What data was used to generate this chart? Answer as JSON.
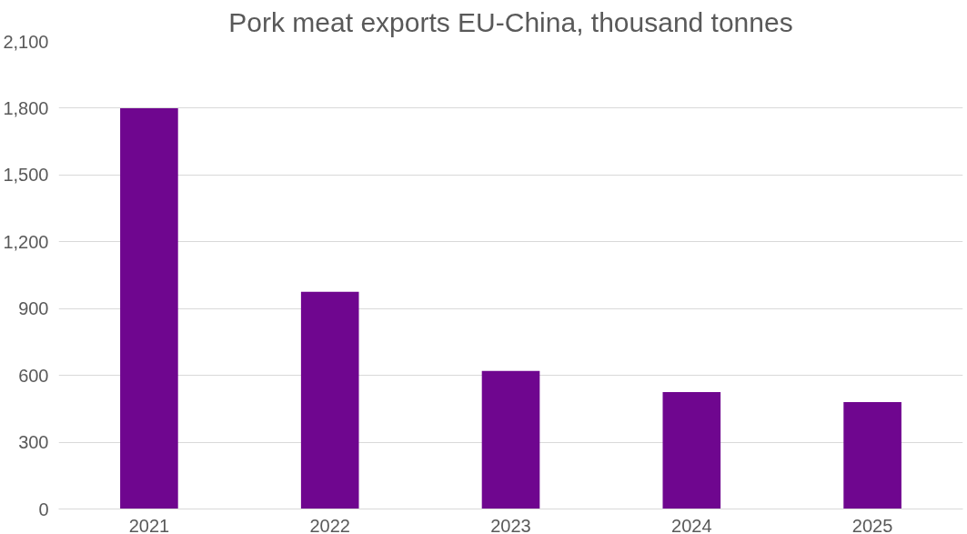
{
  "chart_data": {
    "type": "bar",
    "title": "Pork meat exports EU-China, thousand tonnes",
    "categories": [
      "2021",
      "2022",
      "2023",
      "2024",
      "2025"
    ],
    "values": [
      1800,
      975,
      620,
      525,
      480
    ],
    "color": "#6f068f",
    "ylim": [
      0,
      2100
    ],
    "yticks": [
      0,
      300,
      600,
      900,
      {
        "value": 1200,
        "label": "1,200"
      },
      {
        "value": 1500,
        "label": "1,500"
      },
      {
        "value": 1800,
        "label": "1,800"
      },
      {
        "value": 2100,
        "label": "2,100"
      }
    ],
    "grid": "y"
  }
}
